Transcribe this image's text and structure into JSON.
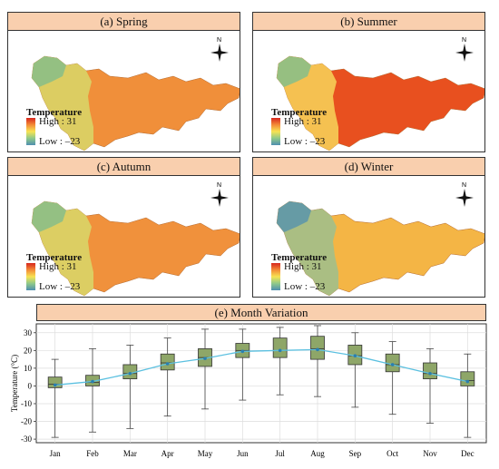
{
  "maps": [
    {
      "title": "(a) Spring",
      "legend_title": "Temperature",
      "high": "High : 31",
      "low": "Low : –23",
      "fill": "#f08f3a"
    },
    {
      "title": "(b) Summer",
      "legend_title": "Temperature",
      "high": "High : 31",
      "low": "Low : –23",
      "fill": "#e8501f"
    },
    {
      "title": "(c) Autumn",
      "legend_title": "Temperature",
      "high": "High : 31",
      "low": "Low : –23",
      "fill": "#f0913c"
    },
    {
      "title": "(d) Winter",
      "legend_title": "Temperature",
      "high": "High : 31",
      "low": "Low : –23",
      "fill": "#f4b545"
    }
  ],
  "compass_label": "N",
  "chart_data": {
    "type": "boxplot",
    "title": "(e) Month Variation",
    "ylabel": "Temperature (°C)",
    "xlabel": "",
    "ylim": [
      -32,
      35
    ],
    "yticks": [
      -30,
      -20,
      -10,
      0,
      10,
      20,
      30
    ],
    "grid": true,
    "categories": [
      "Jan",
      "Feb",
      "Mar",
      "Apr",
      "May",
      "Jun",
      "Jul",
      "Aug",
      "Sep",
      "Oct",
      "Nov",
      "Dec"
    ],
    "boxes": [
      {
        "min": -29,
        "q1": -1,
        "median": 1,
        "q3": 5,
        "max": 15
      },
      {
        "min": -26,
        "q1": 0,
        "median": 2,
        "q3": 6,
        "max": 21
      },
      {
        "min": -24,
        "q1": 4,
        "median": 7,
        "q3": 12,
        "max": 23
      },
      {
        "min": -17,
        "q1": 9,
        "median": 13,
        "q3": 18,
        "max": 27
      },
      {
        "min": -13,
        "q1": 11,
        "median": 16,
        "q3": 21,
        "max": 32
      },
      {
        "min": -8,
        "q1": 16,
        "median": 20,
        "q3": 24,
        "max": 32
      },
      {
        "min": -5,
        "q1": 16,
        "median": 20,
        "q3": 27,
        "max": 33
      },
      {
        "min": -6,
        "q1": 15,
        "median": 21,
        "q3": 28,
        "max": 34
      },
      {
        "min": -12,
        "q1": 12,
        "median": 17,
        "q3": 23,
        "max": 30
      },
      {
        "min": -16,
        "q1": 8,
        "median": 12,
        "q3": 18,
        "max": 25
      },
      {
        "min": -21,
        "q1": 4,
        "median": 7,
        "q3": 13,
        "max": 21
      },
      {
        "min": -29,
        "q1": 0,
        "median": 3,
        "q3": 8,
        "max": 18
      }
    ],
    "mean_line": [
      0.5,
      2.5,
      7,
      12.5,
      15.5,
      19.5,
      20,
      20.5,
      17,
      12,
      7,
      2.5
    ],
    "colors": {
      "box": "#8ea668",
      "mean_line": "#5bc0e0",
      "grid": "#dddddd"
    }
  }
}
